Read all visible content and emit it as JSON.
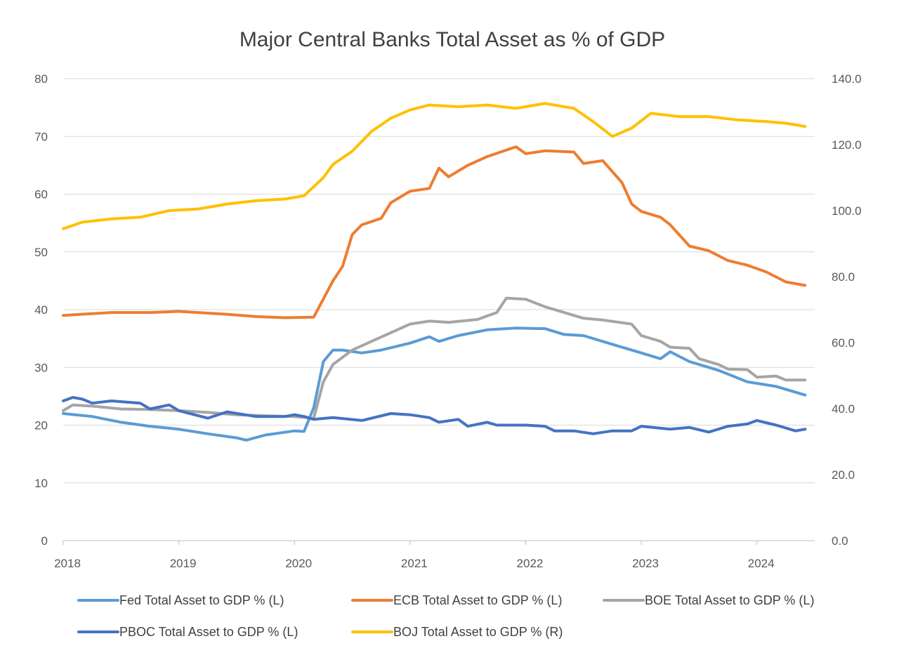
{
  "chart_data": {
    "type": "line",
    "title": "Major Central Banks Total Asset as % of GDP",
    "x_axis": {
      "type": "date",
      "tick_labels": [
        "2018",
        "2019",
        "2020",
        "2021",
        "2022",
        "2023",
        "2024"
      ],
      "range": [
        "2018-01",
        "2024-07"
      ]
    },
    "y_left": {
      "range": [
        0,
        80
      ],
      "tick_labels": [
        "0",
        "10",
        "20",
        "30",
        "40",
        "50",
        "60",
        "70",
        "80"
      ]
    },
    "y_right": {
      "range": [
        0,
        140
      ],
      "tick_labels": [
        "0.0",
        "20.0",
        "40.0",
        "60.0",
        "80.0",
        "100.0",
        "120.0",
        "140.0"
      ]
    },
    "grid": "horizontal",
    "legend_position": "bottom",
    "series": [
      {
        "name": "Fed Total Asset to GDP % (L)",
        "axis": "left",
        "color": "#5B9BD5",
        "points": [
          [
            "2018-01",
            22.0
          ],
          [
            "2018-04",
            21.5
          ],
          [
            "2018-07",
            20.5
          ],
          [
            "2018-10",
            19.8
          ],
          [
            "2019-01",
            19.3
          ],
          [
            "2019-04",
            18.5
          ],
          [
            "2019-07",
            17.8
          ],
          [
            "2019-08",
            17.4
          ],
          [
            "2019-10",
            18.3
          ],
          [
            "2020-01",
            19.0
          ],
          [
            "2020-02",
            18.9
          ],
          [
            "2020-03",
            23.0
          ],
          [
            "2020-04",
            31.0
          ],
          [
            "2020-05",
            33.0
          ],
          [
            "2020-06",
            33.0
          ],
          [
            "2020-08",
            32.5
          ],
          [
            "2020-10",
            33.0
          ],
          [
            "2021-01",
            34.2
          ],
          [
            "2021-03",
            35.3
          ],
          [
            "2021-04",
            34.5
          ],
          [
            "2021-06",
            35.5
          ],
          [
            "2021-09",
            36.5
          ],
          [
            "2021-12",
            36.8
          ],
          [
            "2022-03",
            36.7
          ],
          [
            "2022-05",
            35.7
          ],
          [
            "2022-07",
            35.5
          ],
          [
            "2022-10",
            34.0
          ],
          [
            "2023-01",
            32.5
          ],
          [
            "2023-03",
            31.5
          ],
          [
            "2023-04",
            32.7
          ],
          [
            "2023-06",
            31.0
          ],
          [
            "2023-09",
            29.5
          ],
          [
            "2023-12",
            27.5
          ],
          [
            "2024-03",
            26.7
          ],
          [
            "2024-06",
            25.2
          ]
        ]
      },
      {
        "name": "ECB Total Asset to GDP % (L)",
        "axis": "left",
        "color": "#ED7D31",
        "points": [
          [
            "2018-01",
            39.0
          ],
          [
            "2018-06",
            39.5
          ],
          [
            "2018-10",
            39.5
          ],
          [
            "2019-01",
            39.7
          ],
          [
            "2019-06",
            39.2
          ],
          [
            "2019-09",
            38.8
          ],
          [
            "2019-12",
            38.6
          ],
          [
            "2020-03",
            38.7
          ],
          [
            "2020-05",
            45.0
          ],
          [
            "2020-06",
            47.5
          ],
          [
            "2020-07",
            53.0
          ],
          [
            "2020-08",
            54.7
          ],
          [
            "2020-10",
            55.8
          ],
          [
            "2020-11",
            58.5
          ],
          [
            "2021-01",
            60.5
          ],
          [
            "2021-03",
            61.0
          ],
          [
            "2021-04",
            64.5
          ],
          [
            "2021-05",
            63.0
          ],
          [
            "2021-07",
            65.0
          ],
          [
            "2021-09",
            66.5
          ],
          [
            "2021-12",
            68.2
          ],
          [
            "2022-01",
            67.0
          ],
          [
            "2022-03",
            67.5
          ],
          [
            "2022-06",
            67.3
          ],
          [
            "2022-07",
            65.3
          ],
          [
            "2022-09",
            65.8
          ],
          [
            "2022-11",
            62.0
          ],
          [
            "2022-12",
            58.3
          ],
          [
            "2023-01",
            57.0
          ],
          [
            "2023-03",
            56.0
          ],
          [
            "2023-04",
            54.7
          ],
          [
            "2023-06",
            51.0
          ],
          [
            "2023-08",
            50.2
          ],
          [
            "2023-10",
            48.5
          ],
          [
            "2023-12",
            47.7
          ],
          [
            "2024-02",
            46.5
          ],
          [
            "2024-04",
            44.8
          ],
          [
            "2024-06",
            44.2
          ]
        ]
      },
      {
        "name": "BOE Total Asset to GDP % (L)",
        "axis": "left",
        "color": "#A5A5A5",
        "points": [
          [
            "2018-01",
            22.5
          ],
          [
            "2018-02",
            23.5
          ],
          [
            "2018-04",
            23.3
          ],
          [
            "2018-07",
            22.8
          ],
          [
            "2018-10",
            22.7
          ],
          [
            "2019-01",
            22.5
          ],
          [
            "2019-04",
            22.2
          ],
          [
            "2019-07",
            21.8
          ],
          [
            "2019-10",
            21.6
          ],
          [
            "2020-01",
            21.5
          ],
          [
            "2020-03",
            21.2
          ],
          [
            "2020-04",
            27.5
          ],
          [
            "2020-05",
            30.5
          ],
          [
            "2020-07",
            33.0
          ],
          [
            "2020-09",
            34.5
          ],
          [
            "2020-11",
            36.0
          ],
          [
            "2021-01",
            37.5
          ],
          [
            "2021-03",
            38.0
          ],
          [
            "2021-05",
            37.8
          ],
          [
            "2021-08",
            38.3
          ],
          [
            "2021-10",
            39.5
          ],
          [
            "2021-11",
            42.0
          ],
          [
            "2022-01",
            41.8
          ],
          [
            "2022-03",
            40.5
          ],
          [
            "2022-05",
            39.5
          ],
          [
            "2022-07",
            38.5
          ],
          [
            "2022-09",
            38.2
          ],
          [
            "2022-12",
            37.5
          ],
          [
            "2023-01",
            35.5
          ],
          [
            "2023-03",
            34.5
          ],
          [
            "2023-04",
            33.5
          ],
          [
            "2023-06",
            33.3
          ],
          [
            "2023-07",
            31.5
          ],
          [
            "2023-09",
            30.5
          ],
          [
            "2023-10",
            29.7
          ],
          [
            "2023-12",
            29.6
          ],
          [
            "2024-01",
            28.3
          ],
          [
            "2024-03",
            28.5
          ],
          [
            "2024-04",
            27.8
          ],
          [
            "2024-06",
            27.8
          ]
        ]
      },
      {
        "name": "PBOC Total Asset to GDP % (L)",
        "axis": "left",
        "color": "#4472C4",
        "points": [
          [
            "2018-01",
            24.2
          ],
          [
            "2018-02",
            24.8
          ],
          [
            "2018-03",
            24.5
          ],
          [
            "2018-04",
            23.8
          ],
          [
            "2018-06",
            24.2
          ],
          [
            "2018-09",
            23.8
          ],
          [
            "2018-10",
            22.8
          ],
          [
            "2018-12",
            23.5
          ],
          [
            "2019-01",
            22.5
          ],
          [
            "2019-04",
            21.2
          ],
          [
            "2019-06",
            22.3
          ],
          [
            "2019-09",
            21.5
          ],
          [
            "2019-12",
            21.5
          ],
          [
            "2020-01",
            21.8
          ],
          [
            "2020-02",
            21.5
          ],
          [
            "2020-03",
            21.0
          ],
          [
            "2020-05",
            21.3
          ],
          [
            "2020-08",
            20.8
          ],
          [
            "2020-11",
            22.0
          ],
          [
            "2021-01",
            21.8
          ],
          [
            "2021-03",
            21.3
          ],
          [
            "2021-04",
            20.5
          ],
          [
            "2021-06",
            21.0
          ],
          [
            "2021-07",
            19.8
          ],
          [
            "2021-09",
            20.5
          ],
          [
            "2021-10",
            20.0
          ],
          [
            "2022-01",
            20.0
          ],
          [
            "2022-03",
            19.8
          ],
          [
            "2022-04",
            19.0
          ],
          [
            "2022-06",
            19.0
          ],
          [
            "2022-08",
            18.5
          ],
          [
            "2022-10",
            19.0
          ],
          [
            "2022-12",
            19.0
          ],
          [
            "2023-01",
            19.8
          ],
          [
            "2023-04",
            19.3
          ],
          [
            "2023-06",
            19.6
          ],
          [
            "2023-08",
            18.8
          ],
          [
            "2023-10",
            19.8
          ],
          [
            "2023-12",
            20.2
          ],
          [
            "2024-01",
            20.8
          ],
          [
            "2024-03",
            20.0
          ],
          [
            "2024-05",
            19.0
          ],
          [
            "2024-06",
            19.3
          ]
        ]
      },
      {
        "name": "BOJ Total Asset to GDP % (R)",
        "axis": "right",
        "color": "#FFC000",
        "points": [
          [
            "2018-01",
            94.5
          ],
          [
            "2018-03",
            96.5
          ],
          [
            "2018-06",
            97.5
          ],
          [
            "2018-09",
            98.0
          ],
          [
            "2018-12",
            100.0
          ],
          [
            "2019-03",
            100.5
          ],
          [
            "2019-06",
            102.0
          ],
          [
            "2019-09",
            103.0
          ],
          [
            "2019-12",
            103.5
          ],
          [
            "2020-02",
            104.5
          ],
          [
            "2020-04",
            110.0
          ],
          [
            "2020-05",
            114.0
          ],
          [
            "2020-07",
            118.0
          ],
          [
            "2020-09",
            124.0
          ],
          [
            "2020-11",
            128.0
          ],
          [
            "2021-01",
            130.5
          ],
          [
            "2021-03",
            132.0
          ],
          [
            "2021-06",
            131.5
          ],
          [
            "2021-09",
            132.0
          ],
          [
            "2021-12",
            131.0
          ],
          [
            "2022-03",
            132.5
          ],
          [
            "2022-06",
            131.0
          ],
          [
            "2022-08",
            127.0
          ],
          [
            "2022-10",
            122.5
          ],
          [
            "2022-12",
            125.0
          ],
          [
            "2023-02",
            129.5
          ],
          [
            "2023-05",
            128.5
          ],
          [
            "2023-08",
            128.5
          ],
          [
            "2023-11",
            127.5
          ],
          [
            "2024-02",
            127.0
          ],
          [
            "2024-04",
            126.5
          ],
          [
            "2024-06",
            125.5
          ]
        ]
      }
    ]
  }
}
